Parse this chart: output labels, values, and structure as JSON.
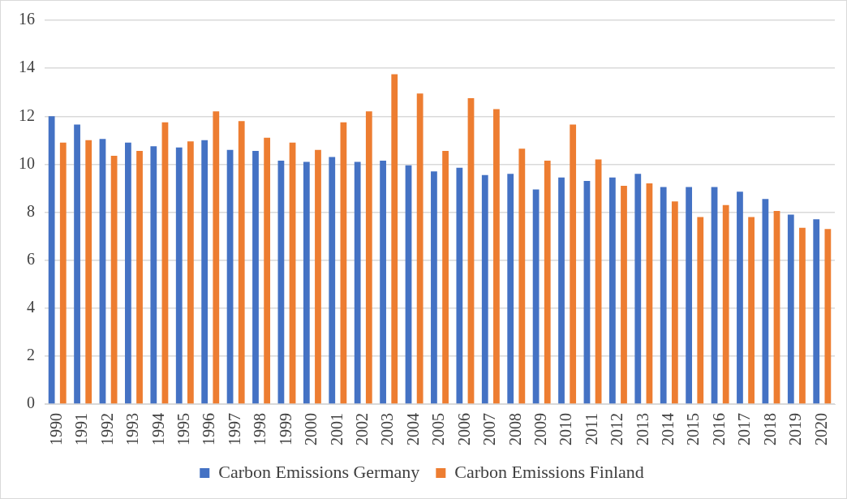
{
  "chart_data": {
    "type": "bar",
    "categories": [
      "1990",
      "1991",
      "1992",
      "1993",
      "1994",
      "1995",
      "1996",
      "1997",
      "1998",
      "1999",
      "2000",
      "2001",
      "2002",
      "2003",
      "2004",
      "2005",
      "2006",
      "2007",
      "2008",
      "2009",
      "2010",
      "2011",
      "2012",
      "2013",
      "2014",
      "2015",
      "2016",
      "2017",
      "2018",
      "2019",
      "2020"
    ],
    "series": [
      {
        "name": "Carbon Emissions Germany",
        "color": "#4472c4",
        "values": [
          12.0,
          11.65,
          11.05,
          10.9,
          10.75,
          10.7,
          11.0,
          10.6,
          10.55,
          10.15,
          10.1,
          10.3,
          10.1,
          10.15,
          9.95,
          9.7,
          9.85,
          9.55,
          9.6,
          8.95,
          9.45,
          9.3,
          9.45,
          9.6,
          9.05,
          9.05,
          9.05,
          8.85,
          8.55,
          7.9,
          7.7
        ]
      },
      {
        "name": "Carbon Emissions Finland",
        "color": "#ed7d31",
        "values": [
          10.9,
          11.0,
          10.35,
          10.55,
          11.75,
          10.95,
          12.2,
          11.8,
          11.1,
          10.9,
          10.6,
          11.75,
          12.2,
          13.75,
          12.95,
          10.55,
          12.75,
          12.3,
          10.65,
          10.15,
          11.65,
          10.2,
          9.1,
          9.2,
          8.45,
          7.8,
          8.3,
          7.8,
          8.05,
          7.35,
          7.3
        ]
      }
    ],
    "ylim": [
      0,
      16
    ],
    "yticks": [
      0,
      2,
      4,
      6,
      8,
      10,
      12,
      14,
      16
    ],
    "grid": "y",
    "legend": "bottom"
  }
}
